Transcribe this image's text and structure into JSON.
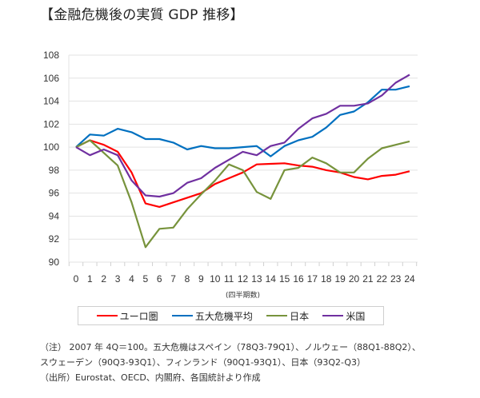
{
  "title": "【金融危機後の実質 GDP 推移】",
  "chart_data": {
    "type": "line",
    "title": "【金融危機後の実質 GDP 推移】",
    "xlabel": "(四半期数)",
    "ylabel": "",
    "x": [
      0,
      1,
      2,
      3,
      4,
      5,
      6,
      7,
      8,
      9,
      10,
      11,
      12,
      13,
      14,
      15,
      16,
      17,
      18,
      19,
      20,
      21,
      22,
      23,
      24
    ],
    "ylim": [
      90,
      108
    ],
    "yticks": [
      90,
      92,
      94,
      96,
      98,
      100,
      102,
      104,
      106,
      108
    ],
    "grid": true,
    "legend_position": "bottom",
    "series": [
      {
        "name": "ユーロ圏",
        "color": "#ff0000",
        "values": [
          100,
          100.6,
          100.2,
          99.6,
          97.8,
          95.1,
          94.8,
          95.2,
          95.6,
          96.0,
          96.8,
          97.3,
          97.8,
          98.5,
          98.55,
          98.6,
          98.4,
          98.3,
          98.0,
          97.8,
          97.4,
          97.2,
          97.5,
          97.6,
          97.9
        ]
      },
      {
        "name": "五大危機平均",
        "color": "#0070c0",
        "values": [
          100,
          101.1,
          101.0,
          101.6,
          101.3,
          100.7,
          100.7,
          100.4,
          99.8,
          100.1,
          99.9,
          99.9,
          100.0,
          100.1,
          99.2,
          100.1,
          100.6,
          100.9,
          101.7,
          102.8,
          103.1,
          103.9,
          105.0,
          105.0,
          105.3
        ]
      },
      {
        "name": "日本",
        "color": "#77933c",
        "values": [
          100,
          100.6,
          99.5,
          98.4,
          95.2,
          91.3,
          92.9,
          93.0,
          94.6,
          95.9,
          97.1,
          98.5,
          98.0,
          96.1,
          95.5,
          98.0,
          98.2,
          99.1,
          98.6,
          97.8,
          97.8,
          99.0,
          99.9,
          100.2,
          100.5
        ]
      },
      {
        "name": "米国",
        "color": "#7030a0",
        "values": [
          100,
          99.3,
          99.8,
          99.3,
          97.1,
          95.8,
          95.7,
          96.0,
          96.9,
          97.3,
          98.2,
          98.9,
          99.6,
          99.3,
          100.1,
          100.4,
          101.6,
          102.5,
          102.9,
          103.6,
          103.6,
          103.8,
          104.5,
          105.6,
          106.3
        ]
      }
    ]
  },
  "notes": [
    "（注） 2007 年 4Q＝100。五大危機はスペイン（78Q3-79Q1）、ノルウェー（88Q1-88Q2）、",
    "スウェーデン（90Q3-93Q1）、フィンランド（90Q1-93Q1）、日本（93Q2-Q3）",
    "（出所）Eurostat、OECD、内閣府、各国統計より作成"
  ]
}
